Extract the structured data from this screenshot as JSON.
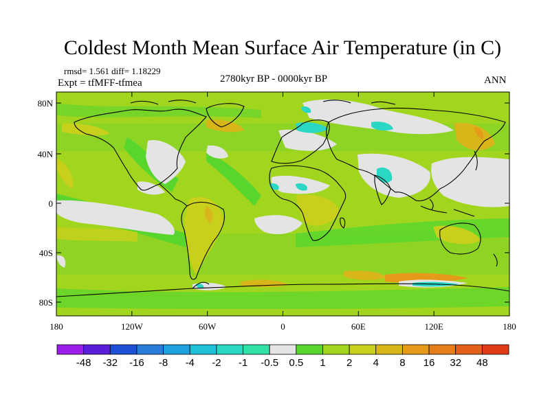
{
  "title": "Coldest Month Mean Surface Air Temperature (in C)",
  "stats_line": "rmsd= 1.561 diff= 1.18229",
  "experiment_line": "Expt = tfMFF-tfmea",
  "period_line": "2780kyr BP - 0000kyr BP",
  "season_label": "ANN",
  "map": {
    "lat_ticks": [
      "80N",
      "40N",
      "0",
      "40S",
      "80S"
    ],
    "lon_ticks": [
      "180",
      "120W",
      "60W",
      "0",
      "60E",
      "120E",
      "180"
    ]
  },
  "colorbar": {
    "colors": [
      "#9a1ee8",
      "#5a1ed8",
      "#1e50d6",
      "#2a7ed8",
      "#1fa0df",
      "#1fc0d8",
      "#2ad6c4",
      "#30e0a6",
      "#e4e4e4",
      "#58d62e",
      "#a2d51e",
      "#c8d01c",
      "#d8b61a",
      "#e69a1a",
      "#e47e1a",
      "#e4601a",
      "#e03a16"
    ],
    "labels": [
      "-48",
      "-32",
      "-16",
      "-8",
      "-4",
      "-2",
      "-1",
      "-0.5",
      "0.5",
      "1",
      "2",
      "4",
      "8",
      "16",
      "32",
      "48"
    ]
  }
}
